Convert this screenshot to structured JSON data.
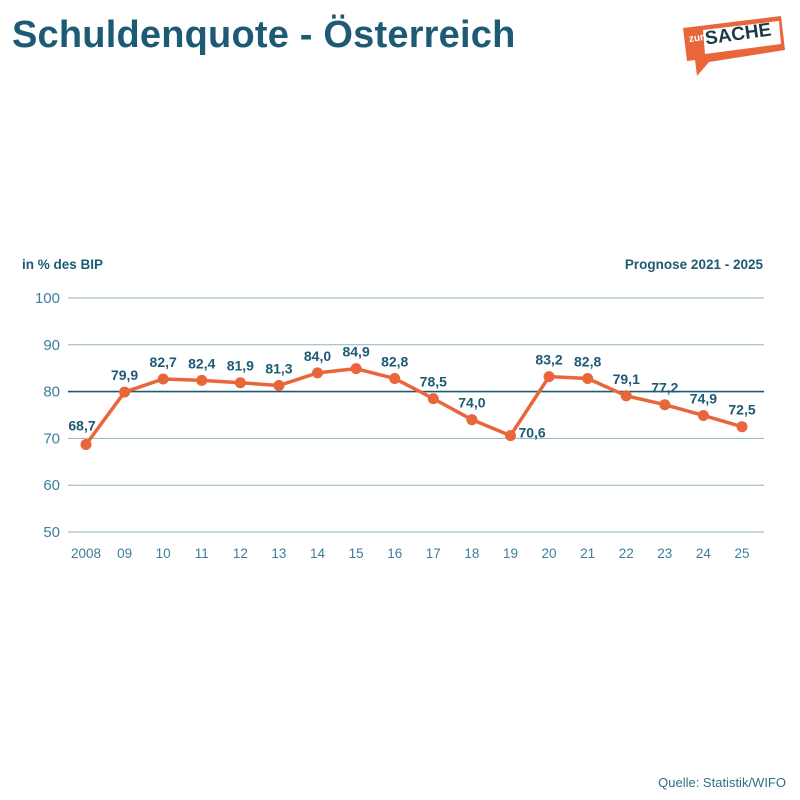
{
  "title": "Schuldenquote - Österreich",
  "logo": {
    "prefix": "zur",
    "word": "SACHE"
  },
  "unit_label": "in % des BIP",
  "forecast_label": "Prognose 2021 - 2025",
  "source": "Quelle: Statistik/WIFO",
  "colors": {
    "title": "#1d5a74",
    "line": "#e8663a",
    "grid": "#8fb3c2",
    "reference_line": "#1d5a74",
    "tick": "#3b7f99",
    "data_label": "#1d5a74",
    "logo_bg": "#e8663a"
  },
  "chart_data": {
    "type": "line",
    "title": "Schuldenquote - Österreich",
    "xlabel": "",
    "ylabel": "in % des BIP",
    "categories": [
      "2008",
      "09",
      "10",
      "11",
      "12",
      "13",
      "14",
      "15",
      "16",
      "17",
      "18",
      "19",
      "20",
      "21",
      "22",
      "23",
      "24",
      "25"
    ],
    "series": [
      {
        "values": [
          68.7,
          79.9,
          82.7,
          82.4,
          81.9,
          81.3,
          84.0,
          84.9,
          82.8,
          78.5,
          74.0,
          70.6,
          83.2,
          82.8,
          79.1,
          77.2,
          74.9,
          72.5
        ],
        "labels": [
          "68,7",
          "79,9",
          "82,7",
          "82,4",
          "81,9",
          "81,3",
          "84,0",
          "84,9",
          "82,8",
          "78,5",
          "74,0",
          "70,6",
          "83,2",
          "82,8",
          "79,1",
          "77,2",
          "74,9",
          "72,5"
        ]
      }
    ],
    "yticks": [
      50,
      60,
      70,
      80,
      90,
      100
    ],
    "ylim": [
      50,
      100
    ],
    "reference_line": 80,
    "grid": true,
    "legend": "none"
  }
}
